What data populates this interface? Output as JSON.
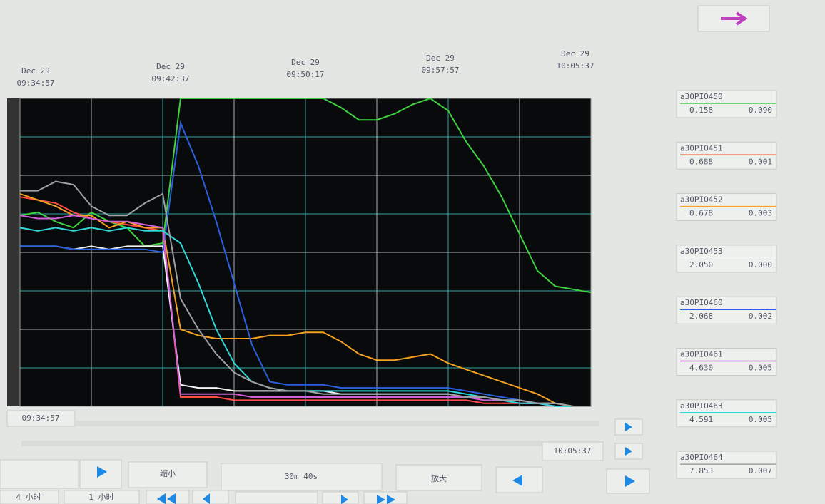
{
  "chart_data": {
    "type": "line",
    "xticks": [
      {
        "date": "Dec 29",
        "time": "09:34:57"
      },
      {
        "date": "Dec 29",
        "time": "09:42:37"
      },
      {
        "date": "Dec 29",
        "time": "09:50:17"
      },
      {
        "date": "Dec 29",
        "time": "09:57:57"
      },
      {
        "date": "Dec 29",
        "time": "10:05:37"
      }
    ],
    "ylim": [
      0,
      100
    ],
    "series": [
      {
        "name": "a30PIO450",
        "color": "#3fd23f",
        "readouts": [
          "0.158",
          "0.090"
        ],
        "values": [
          62,
          63,
          60,
          58,
          63,
          60,
          58,
          52,
          53,
          100,
          100,
          100,
          100,
          100,
          100,
          100,
          100,
          100,
          97,
          93,
          93,
          95,
          98,
          100,
          96,
          86,
          78,
          68,
          56,
          44,
          39,
          38,
          37
        ]
      },
      {
        "name": "a30PIO451",
        "color": "#ff4a4a",
        "readouts": [
          "0.688",
          "0.001"
        ],
        "values": [
          68,
          67,
          66,
          63,
          61,
          60,
          59,
          58,
          57,
          3,
          3,
          3,
          2,
          2,
          2,
          2,
          2,
          2,
          2,
          2,
          2,
          2,
          2,
          2,
          2,
          2,
          1,
          1,
          1,
          1,
          0,
          0,
          0
        ]
      },
      {
        "name": "a30PIO452",
        "color": "#f5a020",
        "readouts": [
          "0.678",
          "0.003"
        ],
        "values": [
          69,
          67,
          65,
          62,
          62,
          58,
          60,
          58,
          58,
          25,
          23,
          22,
          22,
          22,
          23,
          23,
          24,
          24,
          21,
          17,
          15,
          15,
          16,
          17,
          14,
          12,
          10,
          8,
          6,
          4,
          1,
          0,
          0
        ]
      },
      {
        "name": "a30PIO453",
        "color": "#f4f4f4",
        "readouts": [
          "2.050",
          "0.000"
        ],
        "values": [
          52,
          52,
          52,
          51,
          52,
          51,
          52,
          52,
          52,
          7,
          6,
          6,
          5,
          5,
          5,
          5,
          5,
          5,
          4,
          4,
          4,
          4,
          4,
          4,
          4,
          3,
          3,
          2,
          2,
          1,
          1,
          0,
          0
        ]
      },
      {
        "name": "a30PIO460",
        "color": "#2a5fe0",
        "readouts": [
          "2.068",
          "0.002"
        ],
        "values": [
          52,
          52,
          52,
          51,
          51,
          51,
          51,
          51,
          50,
          92,
          78,
          60,
          40,
          20,
          8,
          7,
          7,
          7,
          6,
          6,
          6,
          6,
          6,
          6,
          6,
          5,
          4,
          3,
          2,
          1,
          0,
          0,
          0
        ]
      },
      {
        "name": "a30PIO461",
        "color": "#d060d8",
        "readouts": [
          "4.630",
          "0.005"
        ],
        "values": [
          62,
          61,
          61,
          62,
          61,
          60,
          60,
          59,
          58,
          4,
          4,
          4,
          4,
          3,
          3,
          3,
          3,
          3,
          3,
          3,
          3,
          3,
          3,
          3,
          3,
          3,
          2,
          2,
          1,
          1,
          0,
          0,
          0
        ]
      },
      {
        "name": "a30PIO463",
        "color": "#30d8d8",
        "readouts": [
          "4.591",
          "0.005"
        ],
        "values": [
          58,
          57,
          58,
          57,
          58,
          57,
          58,
          57,
          57,
          53,
          40,
          25,
          14,
          8,
          6,
          5,
          5,
          5,
          5,
          5,
          5,
          5,
          5,
          5,
          5,
          4,
          3,
          2,
          1,
          1,
          0,
          0,
          0
        ]
      },
      {
        "name": "a30PIO464",
        "color": "#a0a0a0",
        "readouts": [
          "7.853",
          "0.007"
        ],
        "values": [
          70,
          70,
          73,
          72,
          65,
          62,
          62,
          66,
          69,
          35,
          25,
          17,
          11,
          8,
          6,
          5,
          5,
          4,
          4,
          4,
          4,
          4,
          4,
          4,
          4,
          3,
          3,
          2,
          2,
          1,
          1,
          0,
          0
        ]
      }
    ]
  },
  "controls": {
    "start_time": "09:34:57",
    "end_time": "10:05:37",
    "zoom_out": "缩小",
    "span": "30m 40s",
    "zoom_in": "放大",
    "range_4h": "4 小时",
    "range_1h": "1 小时"
  }
}
